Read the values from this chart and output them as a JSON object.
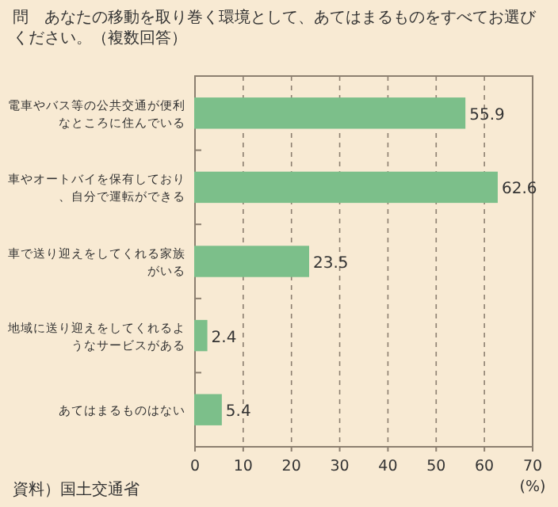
{
  "chart_data": {
    "type": "bar",
    "orientation": "horizontal",
    "title": "問　あなたの移動を取り巻く環境として、あてはまるものをすべてお選びください。（複数回答）",
    "categories": [
      "電車やバス等の公共交通が便利なところに住んでいる",
      "車やオートバイを保有しており、自分で運転ができる",
      "車で送り迎えをしてくれる家族がいる",
      "地域に送り迎えをしてくれるようなサービスがある",
      "あてはまるものはない"
    ],
    "values": [
      55.9,
      62.6,
      23.5,
      2.4,
      5.4
    ],
    "color": "#7cbf8a",
    "data_labels": true,
    "xlim": [
      0,
      70
    ],
    "xticks": [
      0,
      10,
      20,
      30,
      40,
      50,
      60,
      70
    ],
    "xlabel": "(%)",
    "grid": "x",
    "annotations": [
      "資料）国土交通省"
    ]
  }
}
